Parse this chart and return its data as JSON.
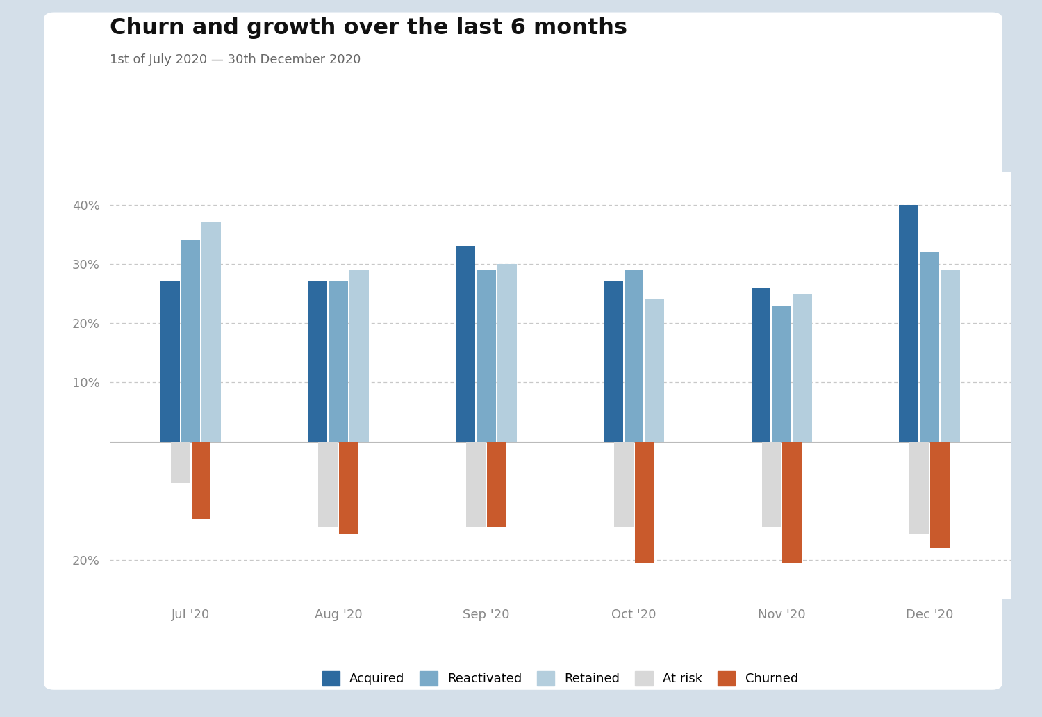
{
  "title": "Churn and growth over the last 6 months",
  "subtitle": "1st of July 2020 — 30th December 2020",
  "months": [
    "Jul '20",
    "Aug '20",
    "Sep '20",
    "Oct '20",
    "Nov '20",
    "Dec '20"
  ],
  "acquired": [
    0.27,
    0.27,
    0.33,
    0.27,
    0.26,
    0.4
  ],
  "reactivated": [
    0.34,
    0.27,
    0.29,
    0.29,
    0.23,
    0.32
  ],
  "retained": [
    0.37,
    0.29,
    0.3,
    0.24,
    0.25,
    0.29
  ],
  "at_risk": [
    -0.07,
    -0.145,
    -0.145,
    -0.145,
    -0.145,
    -0.155
  ],
  "churned": [
    -0.13,
    -0.155,
    -0.145,
    -0.205,
    -0.205,
    -0.18
  ],
  "color_acquired": "#2d6a9f",
  "color_reactivated": "#7aaac8",
  "color_retained": "#b4cedd",
  "color_at_risk": "#d8d8d8",
  "color_churned": "#c95a2c",
  "color_bg": "#ffffff",
  "color_outer_bg": "#d4dfe9",
  "color_grid": "#c8c8c8",
  "ylim_min": -0.265,
  "ylim_max": 0.455,
  "yticks": [
    0.4,
    0.3,
    0.2,
    0.1,
    0.0,
    -0.2
  ],
  "ytick_labels": [
    "40%",
    "30%",
    "20%",
    "10%",
    "",
    "20%"
  ],
  "bar_width": 0.14,
  "title_fontsize": 23,
  "subtitle_fontsize": 13,
  "tick_fontsize": 13,
  "legend_fontsize": 13
}
